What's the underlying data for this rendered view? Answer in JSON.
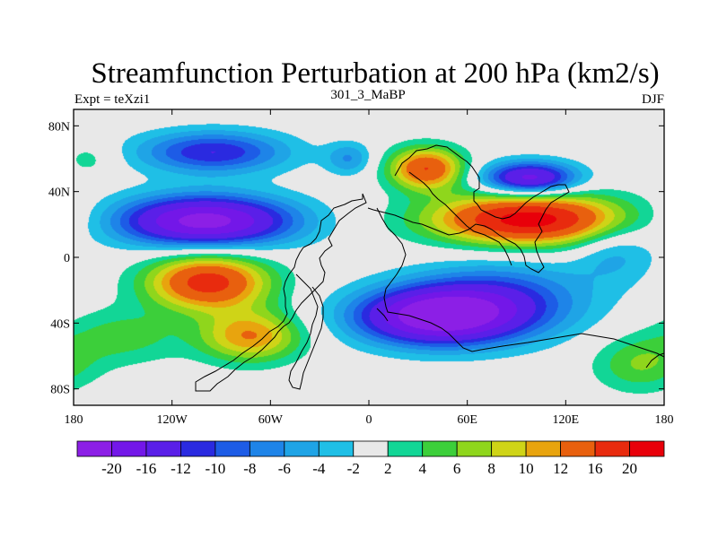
{
  "chart_data": {
    "type": "heatmap",
    "title": "Streamfunction Perturbation at 200 hPa (km2/s)",
    "left_label": "Expt = teXzi1",
    "center_label": "301_3_MaBP",
    "right_label": "DJF",
    "xlabel": "",
    "ylabel": "",
    "xlim": [
      -180,
      180
    ],
    "ylim": [
      -90,
      90
    ],
    "x_ticks": [
      {
        "value": -180,
        "label": "180"
      },
      {
        "value": -120,
        "label": "120W"
      },
      {
        "value": -60,
        "label": "60W"
      },
      {
        "value": 0,
        "label": "0"
      },
      {
        "value": 60,
        "label": "60E"
      },
      {
        "value": 120,
        "label": "120E"
      },
      {
        "value": 180,
        "label": "180"
      }
    ],
    "y_ticks": [
      {
        "value": 80,
        "label": "80N"
      },
      {
        "value": 40,
        "label": "40N"
      },
      {
        "value": 0,
        "label": "0"
      },
      {
        "value": -40,
        "label": "40S"
      },
      {
        "value": -80,
        "label": "80S"
      }
    ],
    "colorbar": {
      "levels": [
        "-20",
        "-16",
        "-12",
        "-10",
        "-8",
        "-6",
        "-4",
        "-2",
        "2",
        "4",
        "6",
        "8",
        "10",
        "12",
        "16",
        "20"
      ],
      "level_values": [
        -20,
        -16,
        -12,
        -10,
        -8,
        -6,
        -4,
        -2,
        2,
        4,
        6,
        8,
        10,
        12,
        16,
        20
      ],
      "colors": [
        "#8c1fe6",
        "#7317e8",
        "#5a1fe8",
        "#2a2ae0",
        "#1d5ce6",
        "#1e84e8",
        "#1fa4e6",
        "#1fbfe6",
        "#e8e8e8",
        "#12d696",
        "#3ccf3a",
        "#8fd61c",
        "#cfd417",
        "#e8a40e",
        "#e8600e",
        "#e82b0e",
        "#e8000a"
      ]
    },
    "anomalies": [
      {
        "lon": -100,
        "lat": 22,
        "amp": -22,
        "slon": 38,
        "slat": 11
      },
      {
        "lon": -98,
        "lat": -15,
        "amp": 18,
        "slon": 26,
        "slat": 12
      },
      {
        "lon": -72,
        "lat": -48,
        "amp": 12,
        "slon": 22,
        "slat": 11
      },
      {
        "lon": -150,
        "lat": -48,
        "amp": 5,
        "slon": 26,
        "slat": 12
      },
      {
        "lon": -95,
        "lat": 64,
        "amp": -12,
        "slon": 32,
        "slat": 9
      },
      {
        "lon": -12,
        "lat": 60,
        "amp": -6,
        "slon": 10,
        "slat": 7
      },
      {
        "lon": 35,
        "lat": 54,
        "amp": 16,
        "slon": 16,
        "slat": 9
      },
      {
        "lon": 98,
        "lat": 23,
        "amp": 22,
        "slon": 42,
        "slat": 11
      },
      {
        "lon": 98,
        "lat": 48,
        "amp": -18,
        "slon": 20,
        "slat": 7
      },
      {
        "lon": 40,
        "lat": -36,
        "amp": -22,
        "slon": 34,
        "slat": 12
      },
      {
        "lon": 80,
        "lat": -26,
        "amp": -10,
        "slon": 38,
        "slat": 16
      },
      {
        "lon": 165,
        "lat": -65,
        "amp": 6,
        "slon": 20,
        "slat": 12
      },
      {
        "lon": 150,
        "lat": 5,
        "amp": -5,
        "slon": 18,
        "slat": 14
      },
      {
        "lon": -170,
        "lat": 60,
        "amp": 3,
        "slon": 12,
        "slat": 8
      }
    ]
  }
}
